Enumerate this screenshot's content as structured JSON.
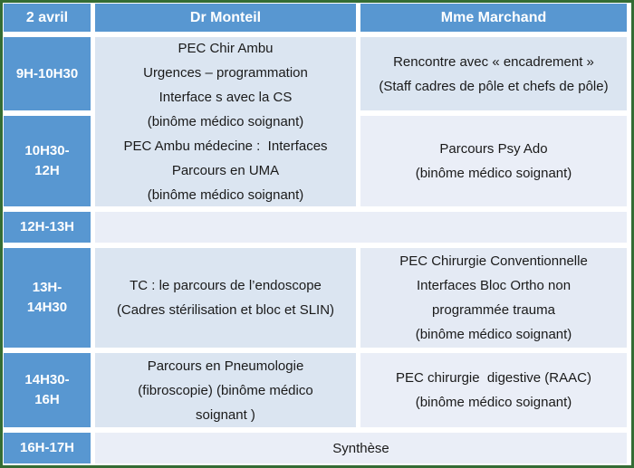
{
  "colors": {
    "header_blue": "#5897d1",
    "cell_light_blue": "#dbe5f1",
    "cell_lighter_blue": "#eaeef7",
    "frame_border_green": "#346c34",
    "gap_white": "#ffffff",
    "header_text": "#ffffff",
    "body_text": "#1a1a1a"
  },
  "header": {
    "date": "2 avril",
    "monteil": "Dr Monteil",
    "marchand": "Mme Marchand"
  },
  "times": {
    "slot1": "9H-10H30",
    "slot2": "10H30-\n12H",
    "slot3": "12H-13H",
    "slot4": "13H-\n14H30",
    "slot5": "14H30-\n16H",
    "slot6": "16H-17H"
  },
  "cells": {
    "monteil_morning": "PEC Chir Ambu\nUrgences – programmation\nInterface s avec la CS\n(binôme médico soignant)\nPEC Ambu médecine :  Interfaces\nParcours en UMA\n(binôme médico soignant)",
    "marchand_0900": "Rencontre avec « encadrement »\n(Staff cadres de pôle et chefs de pôle)",
    "marchand_1030": "Parcours Psy Ado\n(binôme médico soignant)",
    "lunch_break": "",
    "monteil_1300": "TC : le parcours de l’endoscope\n(Cadres stérilisation et bloc et SLIN)",
    "marchand_1300": "PEC Chirurgie Conventionnelle\nInterfaces Bloc Ortho non\nprogrammée trauma\n(binôme médico soignant)",
    "monteil_1430": "Parcours en Pneumologie\n(fibroscopie) (binôme médico\nsoignant )",
    "marchand_1430": "PEC chirurgie  digestive (RAAC)\n(binôme médico soignant)",
    "synthese": "Synthèse"
  }
}
